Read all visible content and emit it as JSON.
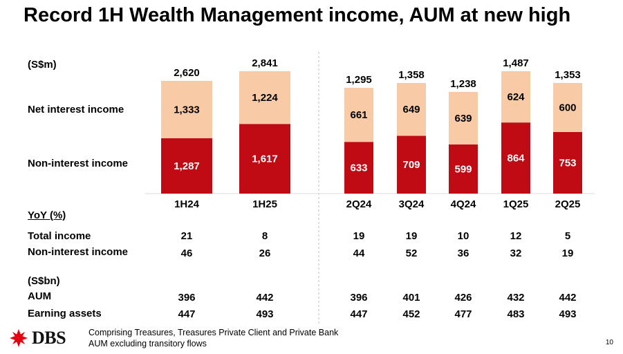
{
  "title": "Record 1H Wealth Management income, AUM at new high",
  "unit_label": "(S$m)",
  "row_labels": {
    "net_interest": "Net interest income",
    "non_interest": "Non-interest income"
  },
  "colors": {
    "net_interest": "#f8cba6",
    "non_interest": "#c00a14",
    "label_dark": "#000000",
    "label_light": "#ffffff"
  },
  "chart_data": {
    "type": "bar",
    "stacked": true,
    "categories": [
      "1H24",
      "1H25",
      "2Q24",
      "3Q24",
      "4Q24",
      "1Q25",
      "2Q25"
    ],
    "series": [
      {
        "name": "Non-interest income",
        "values": [
          1287,
          1617,
          633,
          709,
          599,
          864,
          753
        ]
      },
      {
        "name": "Net interest income",
        "values": [
          1333,
          1224,
          661,
          649,
          639,
          624,
          600
        ]
      }
    ],
    "totals": [
      2620,
      2841,
      1295,
      1358,
      1238,
      1487,
      1353
    ],
    "ylabel": "(S$m)"
  },
  "table": {
    "yoy_header": "YoY (%)",
    "rows": [
      {
        "label": "Total income",
        "values": [
          "21",
          "8",
          "19",
          "19",
          "10",
          "12",
          "5"
        ]
      },
      {
        "label": "Non-interest income",
        "values": [
          "46",
          "26",
          "44",
          "52",
          "36",
          "32",
          "19"
        ]
      }
    ],
    "sbn_header": "(S$bn)",
    "rows2": [
      {
        "label": "AUM",
        "values": [
          "396",
          "442",
          "396",
          "401",
          "426",
          "432",
          "442"
        ]
      },
      {
        "label": "Earning assets",
        "values": [
          "447",
          "493",
          "447",
          "452",
          "477",
          "483",
          "493"
        ]
      }
    ]
  },
  "footer": {
    "logo_text": "DBS",
    "line1": "Comprising Treasures, Treasures Private Client and Private Bank",
    "line2": "AUM excluding transitory flows",
    "page_number": "10"
  }
}
